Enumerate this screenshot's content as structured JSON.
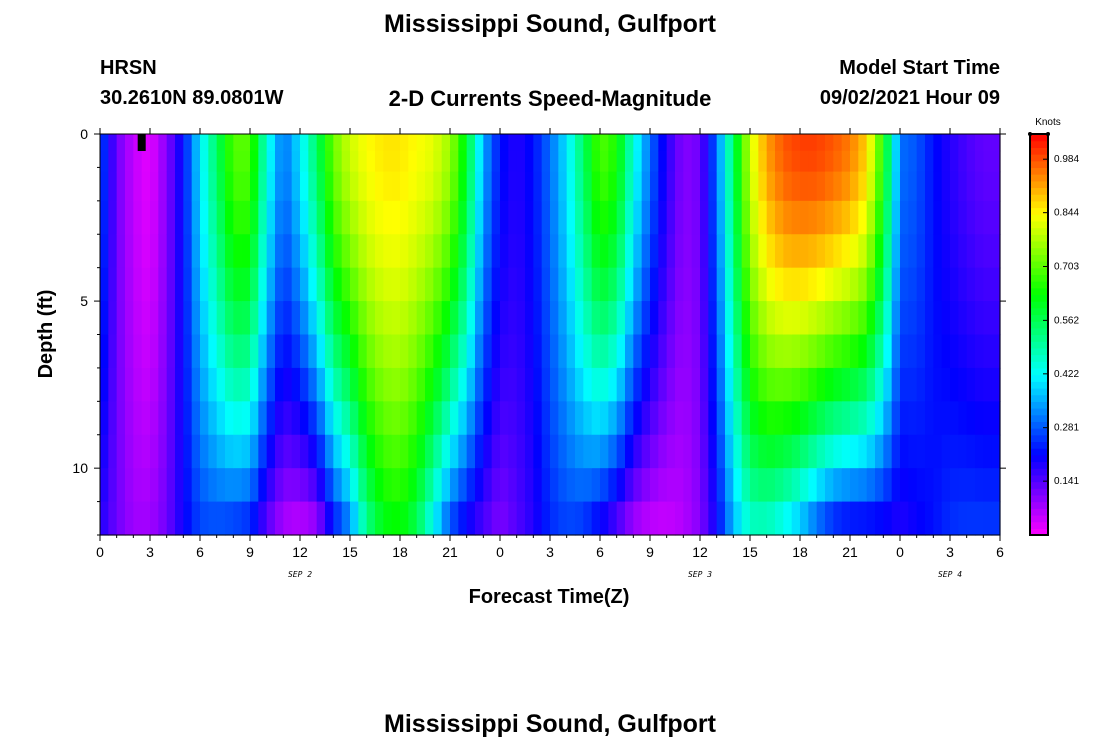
{
  "header": {
    "title": "Mississippi Sound, Gulfport",
    "station_id": "HRSN",
    "coords": "30.2610N  89.0801W",
    "subtitle": "2-D Currents Speed-Magnitude",
    "model_start_label": "Model Start Time",
    "model_start_value": "09/02/2021 Hour 09"
  },
  "footer": {
    "title": "Mississippi Sound, Gulfport"
  },
  "chart_data": {
    "type": "heatmap",
    "title": "2-D Currents Speed-Magnitude",
    "xlabel": "Forecast Time(Z)",
    "ylabel": "Depth (ft)",
    "x_range_hours": [
      0,
      54
    ],
    "y_range_ft": [
      0,
      12.0
    ],
    "y_inverted": true,
    "x_tick_labels": [
      "0",
      "3",
      "6",
      "9",
      "12",
      "15",
      "18",
      "21",
      "0",
      "3",
      "6",
      "9",
      "12",
      "15",
      "18",
      "21",
      "0",
      "3",
      "6"
    ],
    "y_tick_labels": [
      "0",
      "5",
      "10"
    ],
    "y_tick_values": [
      0,
      5,
      10
    ],
    "date_labels": [
      {
        "text": "SEP 2",
        "hour": 12
      },
      {
        "text": "SEP 3",
        "hour": 36
      },
      {
        "text": "SEP 4",
        "hour": 51
      }
    ],
    "colorbar": {
      "unit": "Knots",
      "range": [
        0,
        1.05
      ],
      "ticks": [
        "0.141",
        "0.281",
        "0.422",
        "0.562",
        "0.703",
        "0.844",
        "0.984"
      ],
      "tick_values": [
        0.141,
        0.281,
        0.422,
        0.562,
        0.703,
        0.844,
        0.984
      ]
    },
    "depth_levels_ft": [
      0.25,
      0.75,
      1.5,
      2.5,
      3.5,
      4.5,
      5.5,
      6.5,
      7.5,
      8.5,
      9.5,
      10.5,
      11.5
    ],
    "speed_profile": {
      "hours": [
        0,
        1,
        2,
        3,
        4,
        5,
        6,
        7,
        8,
        9,
        10,
        11,
        12,
        13,
        14,
        15,
        16,
        17,
        18,
        19,
        20,
        21,
        22,
        23,
        24,
        25,
        26,
        27,
        28,
        29,
        30,
        31,
        32,
        33,
        34,
        35,
        36,
        37,
        38,
        39,
        40,
        41,
        42,
        43,
        44,
        45,
        46,
        47,
        48,
        49,
        50,
        51,
        52,
        53,
        54
      ],
      "surface": [
        0.28,
        0.12,
        0.05,
        0.02,
        0.1,
        0.22,
        0.4,
        0.55,
        0.7,
        0.7,
        0.45,
        0.3,
        0.4,
        0.55,
        0.72,
        0.8,
        0.84,
        0.86,
        0.86,
        0.84,
        0.82,
        0.76,
        0.6,
        0.35,
        0.22,
        0.18,
        0.22,
        0.3,
        0.4,
        0.55,
        0.7,
        0.65,
        0.45,
        0.3,
        0.18,
        0.1,
        0.12,
        0.3,
        0.55,
        0.8,
        0.92,
        0.98,
        1.0,
        1.0,
        0.98,
        0.95,
        0.88,
        0.65,
        0.3,
        0.28,
        0.22,
        0.18,
        0.15,
        0.13,
        0.13
      ],
      "bottom": [
        0.18,
        0.12,
        0.08,
        0.08,
        0.12,
        0.2,
        0.26,
        0.26,
        0.24,
        0.22,
        0.12,
        0.06,
        0.04,
        0.06,
        0.2,
        0.3,
        0.5,
        0.6,
        0.62,
        0.55,
        0.4,
        0.25,
        0.18,
        0.14,
        0.1,
        0.14,
        0.18,
        0.24,
        0.26,
        0.24,
        0.18,
        0.12,
        0.06,
        0.04,
        0.04,
        0.06,
        0.1,
        0.2,
        0.35,
        0.45,
        0.45,
        0.4,
        0.34,
        0.26,
        0.2,
        0.18,
        0.18,
        0.18,
        0.18,
        0.2,
        0.22,
        0.25,
        0.26,
        0.26,
        0.26
      ]
    },
    "grid": false,
    "legend_position": "right"
  }
}
